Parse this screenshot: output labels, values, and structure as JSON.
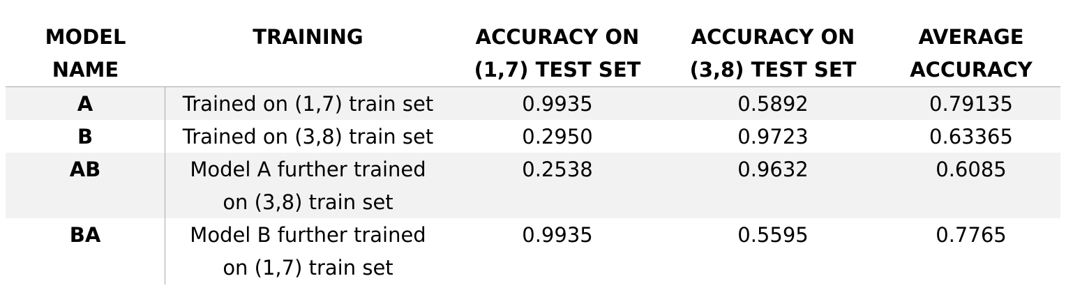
{
  "headers": [
    [
      "MODEL",
      "NAME"
    ],
    [
      "TRAINING"
    ],
    [
      "ACCURACY ON",
      "(1,7) TEST SET"
    ],
    [
      "ACCURACY ON",
      "(3,8) TEST SET"
    ],
    [
      "AVERAGE",
      "ACCURACY"
    ]
  ],
  "rows": [
    {
      "model": "A",
      "training": [
        "Trained on (1,7) train set"
      ],
      "acc_17": "0.9935",
      "acc_38": "0.5892",
      "avg": "0.79135"
    },
    {
      "model": "B",
      "training": [
        "Trained on (3,8) train set"
      ],
      "acc_17": "0.2950",
      "acc_38": "0.9723",
      "avg": "0.63365"
    },
    {
      "model": "AB",
      "training": [
        "Model A further trained",
        "on (3,8) train set"
      ],
      "acc_17": "0.2538",
      "acc_38": "0.9632",
      "avg": "0.6085"
    },
    {
      "model": "BA",
      "training": [
        "Model B further trained",
        "on (1,7) train set"
      ],
      "acc_17": "0.9935",
      "acc_38": "0.5595",
      "avg": "0.7765"
    }
  ],
  "colors": {
    "shade": "#f2f2f2",
    "rule": "#a6a6a6",
    "text": "#000000"
  }
}
